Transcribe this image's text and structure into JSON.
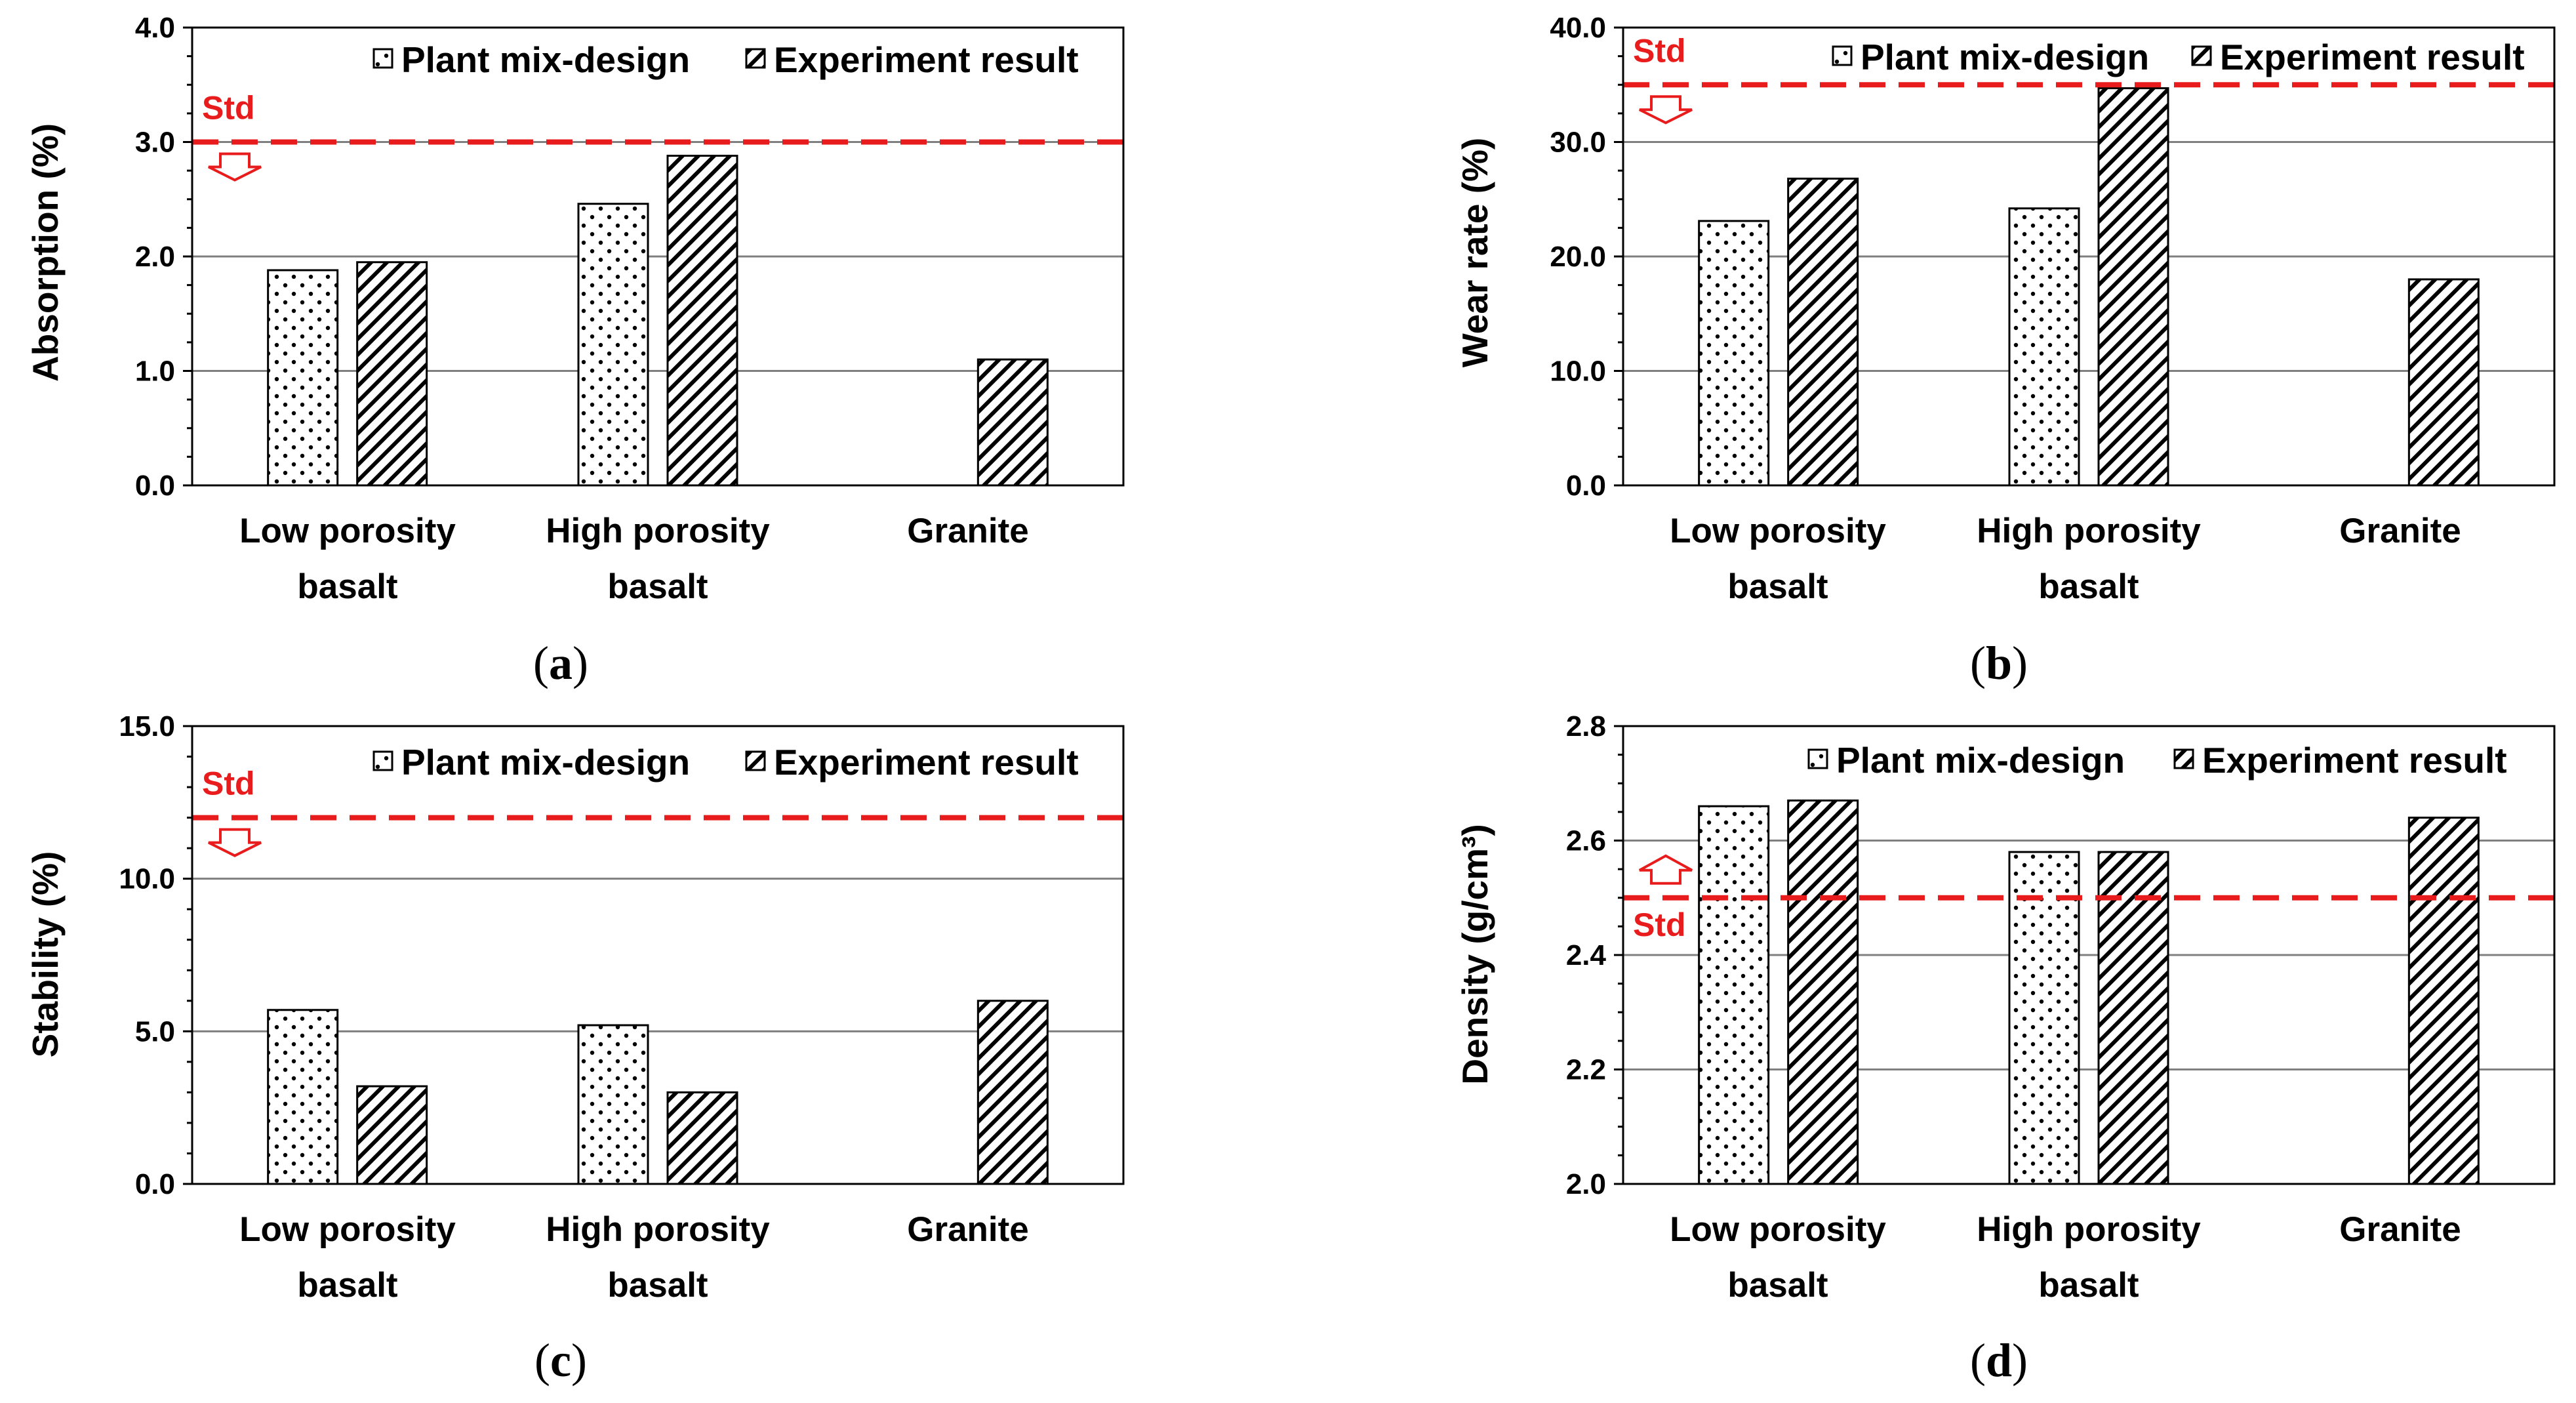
{
  "legend": {
    "plant": "Plant mix-design",
    "experiment": "Experiment result"
  },
  "colors": {
    "std_line": "#e81c1c",
    "grid": "#7f7f7f",
    "bar_fill": "#ffffff",
    "bar_stroke": "#000000"
  },
  "chart_data": [
    {
      "type": "bar",
      "panel": "a",
      "ylabel": "Absorption (%)",
      "ylim": [
        0,
        4
      ],
      "yticks": [
        "0.0",
        "1.0",
        "2.0",
        "3.0",
        "4.0"
      ],
      "categories_line1": [
        "Low porosity",
        "High porosity",
        "Granite"
      ],
      "categories_line2": [
        "basalt",
        "basalt",
        ""
      ],
      "series": [
        {
          "name": "Plant mix-design",
          "values": [
            1.88,
            2.46,
            null
          ]
        },
        {
          "name": "Experiment result",
          "values": [
            1.95,
            2.88,
            1.1
          ]
        }
      ],
      "std": {
        "label": "Std",
        "value": 3.0,
        "direction": "down"
      }
    },
    {
      "type": "bar",
      "panel": "b",
      "ylabel": "Wear rate (%)",
      "ylim": [
        0,
        40
      ],
      "yticks": [
        "0.0",
        "10.0",
        "20.0",
        "30.0",
        "40.0"
      ],
      "categories_line1": [
        "Low porosity",
        "High porosity",
        "Granite"
      ],
      "categories_line2": [
        "basalt",
        "basalt",
        ""
      ],
      "series": [
        {
          "name": "Plant mix-design",
          "values": [
            23.1,
            24.2,
            null
          ]
        },
        {
          "name": "Experiment result",
          "values": [
            26.8,
            34.7,
            18.0
          ]
        }
      ],
      "std": {
        "label": "Std",
        "value": 35.0,
        "direction": "down"
      }
    },
    {
      "type": "bar",
      "panel": "c",
      "ylabel": "Stability (%)",
      "ylim": [
        0,
        15
      ],
      "yticks": [
        "0.0",
        "5.0",
        "10.0",
        "15.0"
      ],
      "categories_line1": [
        "Low porosity",
        "High porosity",
        "Granite"
      ],
      "categories_line2": [
        "basalt",
        "basalt",
        ""
      ],
      "series": [
        {
          "name": "Plant mix-design",
          "values": [
            5.7,
            5.2,
            null
          ]
        },
        {
          "name": "Experiment result",
          "values": [
            3.2,
            3.0,
            6.0
          ]
        }
      ],
      "std": {
        "label": "Std",
        "value": 12.0,
        "direction": "down"
      }
    },
    {
      "type": "bar",
      "panel": "d",
      "ylabel": "Density (g/cm³)",
      "ylim": [
        2.0,
        2.8
      ],
      "yticks": [
        "2.0",
        "2.2",
        "2.4",
        "2.6",
        "2.8"
      ],
      "categories_line1": [
        "Low porosity",
        "High porosity",
        "Granite"
      ],
      "categories_line2": [
        "basalt",
        "basalt",
        ""
      ],
      "series": [
        {
          "name": "Plant mix-design",
          "values": [
            2.66,
            2.58,
            null
          ]
        },
        {
          "name": "Experiment result",
          "values": [
            2.67,
            2.58,
            2.64
          ]
        }
      ],
      "std": {
        "label": "Std",
        "value": 2.5,
        "direction": "up"
      }
    }
  ]
}
